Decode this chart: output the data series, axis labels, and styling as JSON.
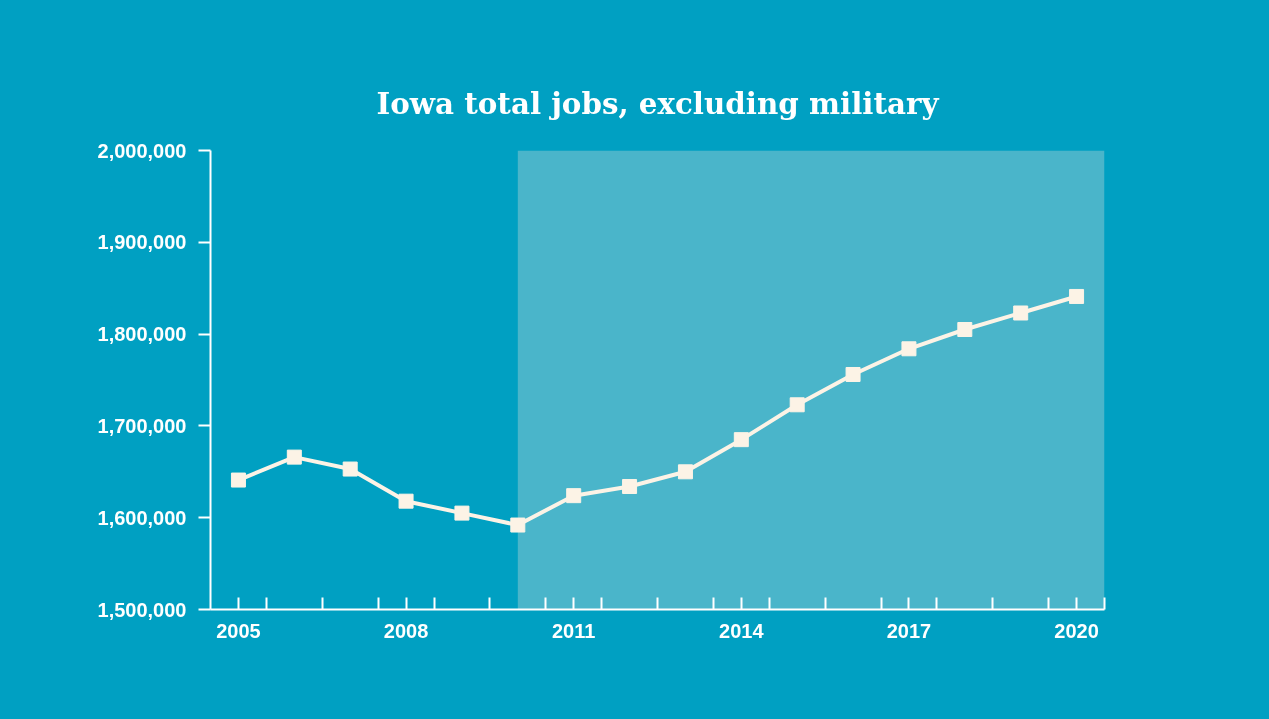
{
  "chart_data": {
    "type": "line",
    "title": "Iowa total jobs, excluding military",
    "x": [
      2005,
      2006,
      2007,
      2008,
      2009,
      2010,
      2011,
      2012,
      2013,
      2014,
      2015,
      2016,
      2017,
      2018,
      2019,
      2020
    ],
    "series": [
      {
        "color": "#fcf3e6",
        "values": [
          1641000,
          1666000,
          1653000,
          1618000,
          1605000,
          1592000,
          1624000,
          1634000,
          1650000,
          1685000,
          1723000,
          1756000,
          1784000,
          1805000,
          1823000,
          1841000
        ]
      }
    ],
    "xlim": [
      2004.5,
      2020.5
    ],
    "xticks": [
      2005,
      {
        "value": 2005.5,
        "label": null
      },
      {
        "value": 2006.5,
        "label": null
      },
      {
        "value": 2007.5,
        "label": null
      },
      2008,
      {
        "value": 2008.5,
        "label": null
      },
      {
        "value": 2009.5,
        "label": null
      },
      {
        "value": 2010.5,
        "label": null
      },
      2011,
      {
        "value": 2011.5,
        "label": null
      },
      {
        "value": 2012.5,
        "label": null
      },
      {
        "value": 2013.5,
        "label": null
      },
      2014,
      {
        "value": 2014.5,
        "label": null
      },
      {
        "value": 2015.5,
        "label": null
      },
      {
        "value": 2016.5,
        "label": null
      },
      2017,
      {
        "value": 2017.5,
        "label": null
      },
      {
        "value": 2018.5,
        "label": null
      },
      {
        "value": 2019.5,
        "label": null
      },
      2020,
      {
        "value": 2020.5,
        "label": null
      }
    ],
    "ylim": [
      1500000,
      2000000
    ],
    "yticks": [
      {
        "value": 1500000,
        "label": "1,500,000"
      },
      {
        "value": 1600000,
        "label": "1,600,000"
      },
      {
        "value": 1700000,
        "label": "1,700,000"
      },
      {
        "value": 1800000,
        "label": "1,800,000"
      },
      {
        "value": 1900000,
        "label": "1,900,000"
      },
      {
        "value": 2000000,
        "label": "2,000,000"
      }
    ],
    "bands": [
      {
        "axis": "x",
        "from": 2010,
        "to": 2020.5,
        "color": "#4ab5ca"
      }
    ],
    "grid": false,
    "marker": "square",
    "line_style": "solid"
  }
}
